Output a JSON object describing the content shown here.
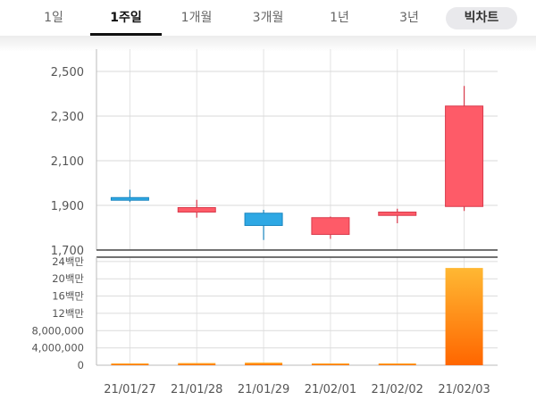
{
  "tabs": {
    "items": [
      "1일",
      "1주일",
      "1개월",
      "3개월",
      "1년",
      "3년"
    ],
    "active_index": 1,
    "pill_label": "빅차트"
  },
  "chart_data": [
    {
      "type": "candlestick",
      "title": "",
      "categories": [
        "21/01/27",
        "21/01/28",
        "21/01/29",
        "21/02/01",
        "21/02/02",
        "21/02/03"
      ],
      "series": [
        {
          "open": [
            1935,
            1870,
            1865,
            1770,
            1855,
            1895
          ],
          "high": [
            1970,
            1925,
            1880,
            1850,
            1885,
            2435
          ],
          "low": [
            1915,
            1845,
            1745,
            1750,
            1820,
            1875
          ],
          "close": [
            1925,
            1890,
            1810,
            1845,
            1870,
            2345
          ]
        }
      ],
      "ylim": [
        1700,
        2600
      ],
      "yticks": [
        "1,700",
        "1,900",
        "2,100",
        "2,300",
        "2,500"
      ],
      "ytick_values": [
        1700,
        1900,
        2100,
        2300,
        2500
      ],
      "up_color": "#fe5b68",
      "down_color": "#2ea8e4",
      "grid": true
    },
    {
      "type": "bar",
      "title": "",
      "categories": [
        "21/01/27",
        "21/01/28",
        "21/01/29",
        "21/02/01",
        "21/02/02",
        "21/02/03"
      ],
      "series": [
        {
          "values": [
            200000,
            500000,
            600000,
            200000,
            200000,
            22500000
          ]
        }
      ],
      "ylim": [
        0,
        25000000
      ],
      "yticks": [
        "0",
        "4,000,000",
        "8,000,000",
        "12백만",
        "16백만",
        "20백만",
        "24백만"
      ],
      "ytick_values": [
        0,
        4000000,
        8000000,
        12000000,
        16000000,
        20000000,
        24000000
      ],
      "bar_gradient": [
        "#ffb833",
        "#ff6600"
      ],
      "grid": true
    }
  ]
}
